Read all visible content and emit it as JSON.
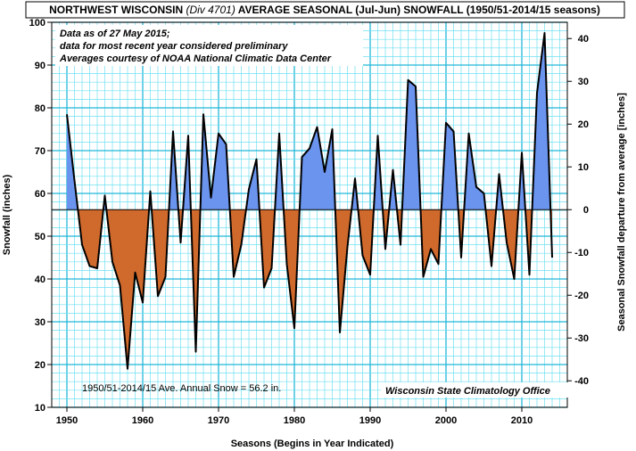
{
  "title": {
    "part1": "NORTHWEST WISCONSIN ",
    "part2": "(Div 4701)",
    "part3": " AVERAGE SEASONAL (Jul-Jun) SNOWFALL (1950/51-2014/15 seasons)"
  },
  "notes": [
    "Data as of 27 May 2015;",
    "data for most recent year considered preliminary",
    "Averages courtesy of NOAA National Climatic Data Center"
  ],
  "average_note": "1950/51-2014/15 Ave. Annual Snow = 56.2 in.",
  "credit": "Wisconsin State Climatology Office",
  "colors": {
    "grid_minor": "#6fe0f0",
    "grid_major": "#22b6d8",
    "above": "#6a94ee",
    "below": "#d06a2c",
    "line": "#000000"
  },
  "chart_data": {
    "type": "area",
    "title": "NORTHWEST WISCONSIN (Div 4701) AVERAGE SEASONAL (Jul-Jun) SNOWFALL (1950/51-2014/15 seasons)",
    "xlabel": "Seasons (Begins in Year Indicated)",
    "ylabel": "Snowfall  (inches)",
    "y2label": "Seasonal Snowfall departure from average [inches]",
    "xlim": [
      1948,
      2016
    ],
    "ylim": [
      10,
      100
    ],
    "y2lim": [
      -46.2,
      43.8
    ],
    "average": 56.2,
    "grid": true,
    "x_ticks": [
      1950,
      1960,
      1970,
      1980,
      1990,
      2000,
      2010
    ],
    "y_ticks": [
      10,
      20,
      30,
      40,
      50,
      60,
      70,
      80,
      90,
      100
    ],
    "y2_ticks": [
      -40,
      -30,
      -20,
      -10,
      0,
      10,
      20,
      30,
      40
    ],
    "series": [
      {
        "x": [
          1950,
          1951,
          1952,
          1953,
          1954,
          1955,
          1956,
          1957,
          1958,
          1959,
          1960,
          1961,
          1962,
          1963,
          1964,
          1965,
          1966,
          1967,
          1968,
          1969,
          1970,
          1971,
          1972,
          1973,
          1974,
          1975,
          1976,
          1977,
          1978,
          1979,
          1980,
          1981,
          1982,
          1983,
          1984,
          1985,
          1986,
          1987,
          1988,
          1989,
          1990,
          1991,
          1992,
          1993,
          1994,
          1995,
          1996,
          1997,
          1998,
          1999,
          2000,
          2001,
          2002,
          2003,
          2004,
          2005,
          2006,
          2007,
          2008,
          2009,
          2010,
          2011,
          2012,
          2013,
          2014
        ],
        "values": [
          78.5,
          63.0,
          48.0,
          43.0,
          42.5,
          59.5,
          44.0,
          38.5,
          19.0,
          41.5,
          34.5,
          60.5,
          36.0,
          40.5,
          74.5,
          48.5,
          73.5,
          23.0,
          78.5,
          59.0,
          74.0,
          71.5,
          40.5,
          48.0,
          61.0,
          68.0,
          38.0,
          42.5,
          74.0,
          43.5,
          28.5,
          68.5,
          70.5,
          75.5,
          65.0,
          75.0,
          27.5,
          47.5,
          63.5,
          45.5,
          41.0,
          73.5,
          47.0,
          65.5,
          48.0,
          86.5,
          85.0,
          40.5,
          47.0,
          43.5,
          76.5,
          74.5,
          45.0,
          74.0,
          61.5,
          60.0,
          43.0,
          64.5,
          48.5,
          40.0,
          69.5,
          41.0,
          83.5,
          97.5,
          45.0
        ]
      }
    ]
  }
}
